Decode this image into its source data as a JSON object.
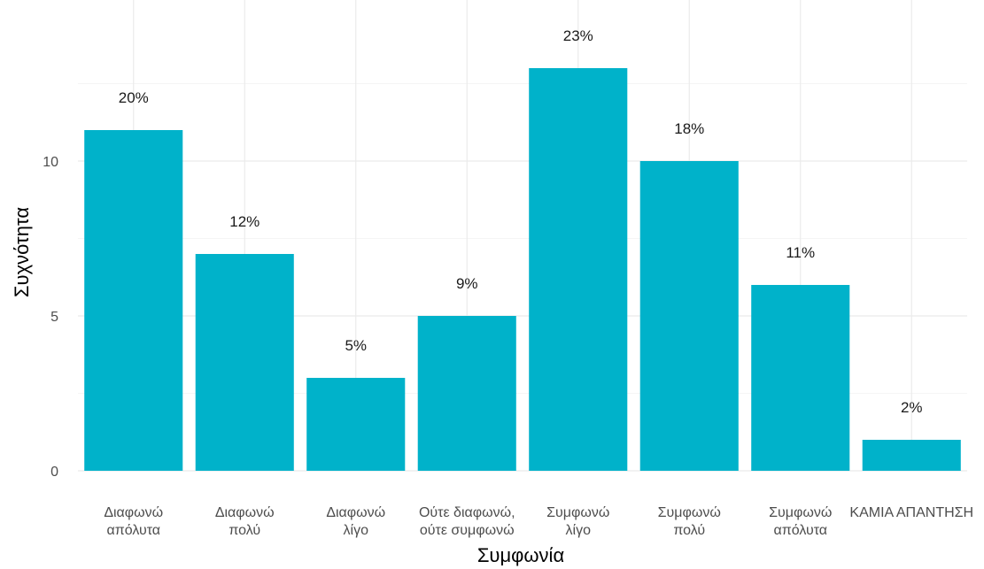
{
  "chart_data": {
    "type": "bar",
    "categories": [
      "Διαφωνώ απόλυτα",
      "Διαφωνώ πολύ",
      "Διαφωνώ λίγο",
      "Ούτε διαφωνώ, ούτε συμφωνώ",
      "Συμφωνώ λίγο",
      "Συμφωνώ πολύ",
      "Συμφωνώ απόλυτα",
      "ΚΑΜΙΑ ΑΠΑΝΤΗΣΗ"
    ],
    "category_label_lines": [
      [
        "Διαφωνώ",
        "απόλυτα"
      ],
      [
        "Διαφωνώ",
        "πολύ"
      ],
      [
        "Διαφωνώ",
        "λίγο"
      ],
      [
        "Ούτε διαφωνώ,",
        "ούτε συμφωνώ"
      ],
      [
        "Συμφωνώ",
        "λίγο"
      ],
      [
        "Συμφωνώ",
        "πολύ"
      ],
      [
        "Συμφωνώ",
        "απόλυτα"
      ],
      [
        "ΚΑΜΙΑ ΑΠΑΝΤΗΣΗ"
      ]
    ],
    "values": [
      11,
      7,
      3,
      5,
      13,
      10,
      6,
      1
    ],
    "data_labels": [
      "20%",
      "12%",
      "5%",
      "9%",
      "23%",
      "18%",
      "11%",
      "2%"
    ],
    "title": "",
    "xlabel": "Συμφωνία",
    "ylabel": "Συχνότητα",
    "ylim": [
      0,
      14.5
    ],
    "yticks": [
      0,
      5,
      10
    ],
    "grid": true,
    "bar_color": "#00B2CA",
    "background": "#FFFFFF"
  }
}
